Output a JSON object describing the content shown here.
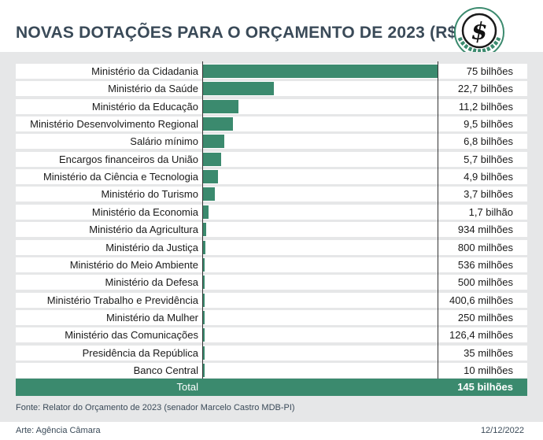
{
  "title": "NOVAS DOTAÇÕES PARA O ORÇAMENTO DE 2023 (R$)",
  "logo_text": "$",
  "colors": {
    "bar": "#3b8a6e",
    "background": "#e6e7e8",
    "title": "#3a4a58"
  },
  "chart_data": {
    "type": "bar",
    "orientation": "horizontal",
    "unit": "R$ milhões",
    "categories": [
      "Ministério da Cidadania",
      "Ministério da Saúde",
      "Ministério da Educação",
      "Ministério Desenvolvimento Regional",
      "Salário mínimo",
      "Encargos financeiros da União",
      "Ministério da Ciência e Tecnologia",
      "Ministério do Turismo",
      "Ministério da Economia",
      "Ministério da Agricultura",
      "Ministério da Justiça",
      "Ministério do Meio Ambiente",
      "Ministério da Defesa",
      "Ministério Trabalho e Previdência",
      "Ministério da Mulher",
      "Ministério das Comunicações",
      "Presidência da República",
      "Banco Central"
    ],
    "values": [
      75000,
      22700,
      11200,
      9500,
      6800,
      5700,
      4900,
      3700,
      1700,
      934,
      800,
      536,
      500,
      400.6,
      250,
      126.4,
      35,
      10
    ],
    "value_labels": [
      "75 bilhões",
      "22,7 bilhões",
      "11,2 bilhões",
      "9,5 bilhões",
      "6,8 bilhões",
      "5,7 bilhões",
      "4,9 bilhões",
      "3,7 bilhões",
      "1,7 bilhão",
      "934 milhões",
      "800 milhões",
      "536 milhões",
      "500 milhões",
      "400,6 milhões",
      "250 milhões",
      "126,4 milhões",
      "35 milhões",
      "10 milhões"
    ],
    "xlim": [
      0,
      75000
    ],
    "total_label": "Total",
    "total_value": "145 bilhões"
  },
  "source": "Fonte: Relator do Orçamento de 2023 (senador Marcelo Castro MDB-PI)",
  "credit": "Arte: Agência Câmara",
  "date": "12/12/2022"
}
